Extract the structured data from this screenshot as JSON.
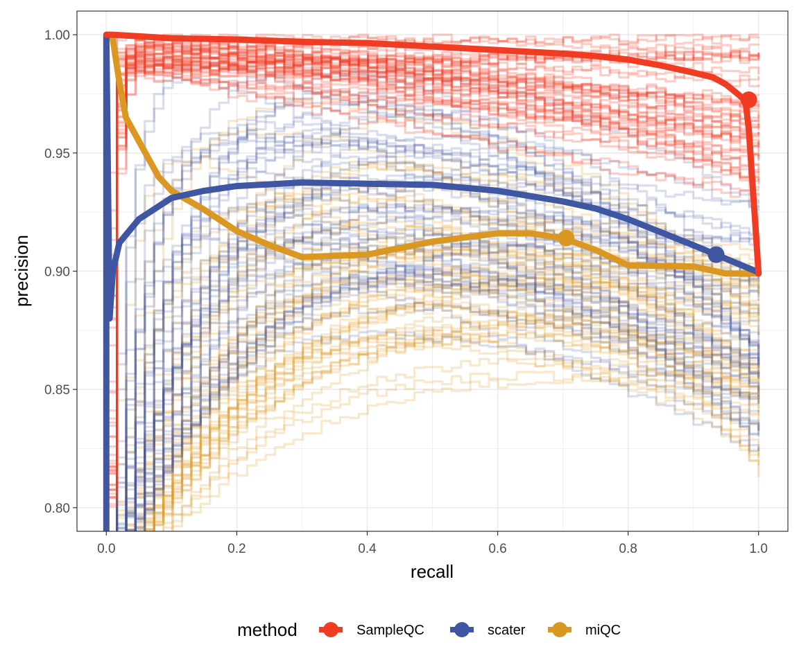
{
  "chart_data": {
    "type": "line",
    "xlabel": "recall",
    "ylabel": "precision",
    "xlim": [
      -0.045,
      1.045
    ],
    "ylim": [
      0.79,
      1.01
    ],
    "x_ticks": [
      0.0,
      0.2,
      0.4,
      0.6,
      0.8,
      1.0
    ],
    "x_tick_labels": [
      "0.0",
      "0.2",
      "0.4",
      "0.6",
      "0.8",
      "1.0"
    ],
    "y_ticks": [
      0.8,
      0.85,
      0.9,
      0.95,
      1.0
    ],
    "y_tick_labels": [
      "0.80",
      "0.85",
      "0.90",
      "0.95",
      "1.00"
    ],
    "grid": true,
    "legend": {
      "title": "method",
      "placement": "bottom",
      "entries": [
        "SampleQC",
        "scater",
        "miQC"
      ]
    },
    "colors": {
      "SampleQC": "#F03C23",
      "scater": "#3F56A2",
      "miQC": "#DA9822"
    },
    "series": [
      {
        "name": "SampleQC",
        "x": [
          0.0,
          0.01,
          0.1,
          0.2,
          0.3,
          0.4,
          0.5,
          0.6,
          0.7,
          0.75,
          0.8,
          0.85,
          0.9,
          0.93,
          0.95,
          0.97,
          0.98,
          0.985,
          0.99,
          0.995,
          1.0
        ],
        "y": [
          1.0,
          1.0,
          0.9985,
          0.998,
          0.997,
          0.9965,
          0.995,
          0.9935,
          0.992,
          0.991,
          0.9895,
          0.987,
          0.984,
          0.982,
          0.979,
          0.9745,
          0.972,
          0.96,
          0.94,
          0.92,
          0.899
        ],
        "marker": {
          "x": 0.985,
          "y": 0.9725
        }
      },
      {
        "name": "scater",
        "x": [
          0.0,
          0.0,
          0.005,
          0.01,
          0.02,
          0.05,
          0.1,
          0.15,
          0.2,
          0.3,
          0.4,
          0.5,
          0.6,
          0.7,
          0.75,
          0.8,
          0.85,
          0.9,
          0.935,
          1.0
        ],
        "y": [
          0.79,
          1.0,
          0.88,
          0.9,
          0.912,
          0.922,
          0.931,
          0.934,
          0.936,
          0.9375,
          0.937,
          0.9365,
          0.934,
          0.9295,
          0.9265,
          0.922,
          0.9165,
          0.911,
          0.907,
          0.8995
        ],
        "marker": {
          "x": 0.935,
          "y": 0.907
        }
      },
      {
        "name": "miQC",
        "x": [
          0.005,
          0.01,
          0.02,
          0.03,
          0.05,
          0.08,
          0.1,
          0.15,
          0.2,
          0.25,
          0.3,
          0.4,
          0.5,
          0.6,
          0.65,
          0.7,
          0.75,
          0.8,
          0.9,
          0.95,
          1.0
        ],
        "y": [
          1.0,
          0.998,
          0.98,
          0.965,
          0.955,
          0.94,
          0.934,
          0.926,
          0.917,
          0.911,
          0.906,
          0.907,
          0.9125,
          0.916,
          0.916,
          0.914,
          0.909,
          0.9025,
          0.902,
          0.899,
          0.899
        ],
        "marker": {
          "x": 0.705,
          "y": 0.914
        }
      }
    ]
  }
}
